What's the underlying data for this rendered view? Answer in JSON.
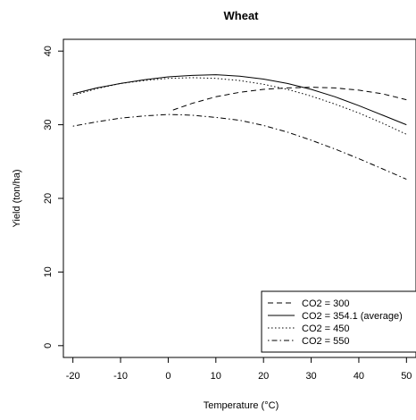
{
  "chart_data": {
    "type": "line",
    "title": "Wheat",
    "xlabel": "Temperature (°C)",
    "ylabel": "Yield (ton/ha)",
    "xlim": [
      -22,
      52
    ],
    "ylim": [
      -1.6,
      41.6
    ],
    "xticks": [
      -20,
      -10,
      0,
      10,
      20,
      30,
      40,
      50
    ],
    "yticks": [
      0,
      10,
      20,
      30,
      40
    ],
    "grid": false,
    "legend_position": "bottom-right",
    "series": [
      {
        "name": "CO2 = 300",
        "line_style": "dashed",
        "x": [
          1,
          5,
          10,
          15,
          20,
          25,
          30,
          35,
          40,
          45,
          50
        ],
        "y": [
          32.0,
          32.9,
          33.8,
          34.4,
          34.8,
          35.0,
          35.1,
          35.0,
          34.7,
          34.2,
          33.4
        ]
      },
      {
        "name": "CO2 = 354.1 (average)",
        "line_style": "solid",
        "x": [
          -20,
          -15,
          -10,
          -5,
          0,
          5,
          10,
          15,
          20,
          25,
          30,
          35,
          40,
          45,
          50
        ],
        "y": [
          34.2,
          35.0,
          35.6,
          36.1,
          36.5,
          36.7,
          36.8,
          36.6,
          36.2,
          35.6,
          34.8,
          33.8,
          32.6,
          31.3,
          30.0
        ]
      },
      {
        "name": "CO2 = 450",
        "line_style": "dotted",
        "x": [
          -20,
          -15,
          -10,
          -5,
          0,
          5,
          10,
          15,
          20,
          25,
          30,
          35,
          40,
          45,
          50
        ],
        "y": [
          34.0,
          34.9,
          35.6,
          36.0,
          36.3,
          36.4,
          36.3,
          36.0,
          35.5,
          34.8,
          33.9,
          32.8,
          31.6,
          30.2,
          28.7
        ]
      },
      {
        "name": "CO2 = 550",
        "line_style": "dotdash",
        "x": [
          -20,
          -15,
          -10,
          -5,
          0,
          5,
          10,
          15,
          20,
          25,
          30,
          35,
          40,
          45,
          50
        ],
        "y": [
          29.8,
          30.4,
          30.9,
          31.2,
          31.4,
          31.3,
          31.0,
          30.6,
          29.9,
          29.0,
          27.9,
          26.7,
          25.4,
          24.0,
          22.6
        ]
      }
    ]
  }
}
